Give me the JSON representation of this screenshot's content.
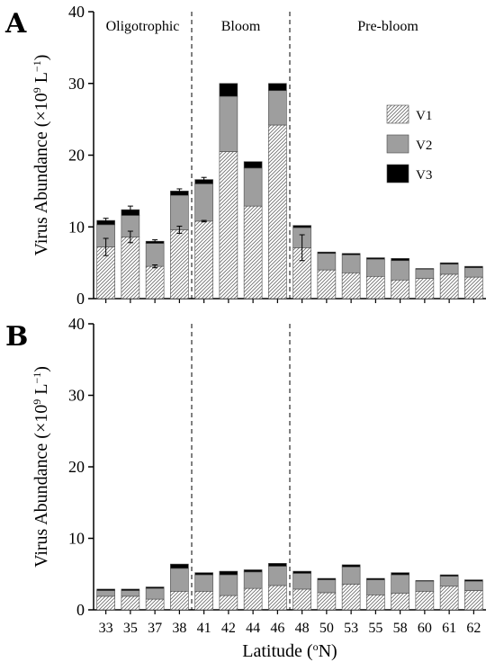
{
  "chart_data": [
    {
      "panel": "A",
      "type": "bar",
      "stacked": true,
      "ylabel_main": "Virus Abundance (×10",
      "ylabel_sup": "9",
      "ylabel_mid": " L",
      "ylabel_sup2": "−1",
      "ylabel_end": ")",
      "ylim": [
        0,
        40
      ],
      "yticks": [
        "0",
        "10",
        "20",
        "30",
        "40"
      ],
      "regions": [
        "Oligotrophic",
        "Bloom",
        "Pre-bloom"
      ],
      "dividers_after_category_index": [
        3,
        7
      ],
      "categories": [
        "33",
        "35",
        "37",
        "38",
        "41",
        "42",
        "44",
        "46",
        "48",
        "50",
        "53",
        "55",
        "58",
        "60",
        "61",
        "62"
      ],
      "legend_position": "right",
      "series": [
        {
          "name": "V1",
          "fill": "hatch",
          "values": [
            7.2,
            8.6,
            4.5,
            9.6,
            10.8,
            20.5,
            12.9,
            24.2,
            7.1,
            4.0,
            3.6,
            3.1,
            2.6,
            2.8,
            3.4,
            3.0
          ]
        },
        {
          "name": "V2",
          "fill": "#9e9e9e",
          "values": [
            3.1,
            3.0,
            3.2,
            4.8,
            5.2,
            7.7,
            5.3,
            4.8,
            2.8,
            2.3,
            2.5,
            2.4,
            2.7,
            1.3,
            1.4,
            1.3
          ]
        },
        {
          "name": "V3",
          "fill": "#000000",
          "values": [
            0.6,
            0.8,
            0.3,
            0.6,
            0.6,
            1.8,
            0.9,
            1.0,
            0.3,
            0.2,
            0.2,
            0.2,
            0.3,
            0.1,
            0.2,
            0.2
          ]
        }
      ],
      "error_bars_v1": [
        1.2,
        0.8,
        0.2,
        0.5,
        0.1,
        null,
        null,
        null,
        1.8,
        null,
        null,
        null,
        null,
        null,
        null,
        null
      ],
      "error_bars_total": [
        0.3,
        0.5,
        0.2,
        0.3,
        0.3,
        null,
        null,
        null,
        null,
        null,
        null,
        null,
        null,
        null,
        null,
        null
      ]
    },
    {
      "panel": "B",
      "type": "bar",
      "stacked": true,
      "xlabel_main": "Latitude (",
      "xlabel_sup": "o",
      "xlabel_end": "N)",
      "ylabel_main": "Virus Abundance (×10",
      "ylabel_sup": "9",
      "ylabel_mid": " L",
      "ylabel_sup2": "−1",
      "ylabel_end": ")",
      "ylim": [
        0,
        40
      ],
      "yticks": [
        "0",
        "10",
        "20",
        "30",
        "40"
      ],
      "dividers_after_category_index": [
        3,
        7
      ],
      "categories": [
        "33",
        "35",
        "37",
        "38",
        "41",
        "42",
        "44",
        "46",
        "48",
        "50",
        "53",
        "55",
        "58",
        "60",
        "61",
        "62"
      ],
      "series": [
        {
          "name": "V1",
          "fill": "hatch",
          "values": [
            1.9,
            1.9,
            1.5,
            2.6,
            2.6,
            2.0,
            3.0,
            3.4,
            2.9,
            2.4,
            3.6,
            2.1,
            2.3,
            2.6,
            3.3,
            2.7
          ]
        },
        {
          "name": "V2",
          "fill": "#9e9e9e",
          "values": [
            0.8,
            0.8,
            1.5,
            3.2,
            2.3,
            2.9,
            2.3,
            2.7,
            2.2,
            1.8,
            2.4,
            2.1,
            2.6,
            1.4,
            1.4,
            1.3
          ]
        },
        {
          "name": "V3",
          "fill": "#000000",
          "values": [
            0.2,
            0.2,
            0.2,
            0.6,
            0.3,
            0.5,
            0.3,
            0.4,
            0.3,
            0.2,
            0.3,
            0.2,
            0.3,
            0.1,
            0.2,
            0.2
          ]
        }
      ]
    }
  ]
}
